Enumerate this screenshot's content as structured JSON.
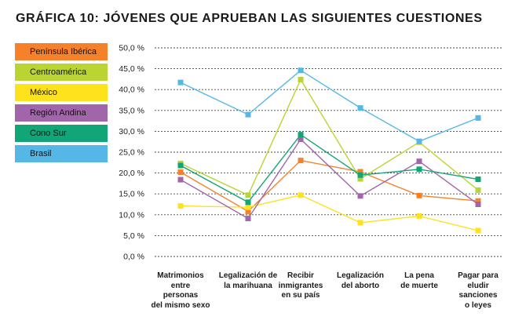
{
  "chart_data": {
    "type": "line",
    "title": "GRÁFICA 10: JÓVENES QUE APRUEBAN LAS SIGUIENTES CUESTIONES",
    "ylim": [
      0,
      50
    ],
    "y_ticks": [
      "0,0 %",
      "5,0 %",
      "10,0 %",
      "15,0 %",
      "20,0 %",
      "25,0 %",
      "30,0 %",
      "35,0 %",
      "40,0 %",
      "45,0 %",
      "50,0 %"
    ],
    "categories": [
      [
        "Matrimonios",
        "entre",
        "personas",
        "del mismo sexo"
      ],
      [
        "Legalización de",
        "la marihuana"
      ],
      [
        "Recibir",
        "inmigrantes",
        "en su país"
      ],
      [
        "Legalización",
        "del aborto"
      ],
      [
        "La pena",
        "de muerte"
      ],
      [
        "Pagar para",
        "eludir",
        "sanciones",
        "o leyes"
      ]
    ],
    "series": [
      {
        "name": "Península Ibérica",
        "color": "#f5822b",
        "values": [
          20.2,
          10.8,
          23.0,
          20.3,
          14.6,
          13.3
        ]
      },
      {
        "name": "Centroamérica",
        "color": "#bad532",
        "values": [
          22.3,
          14.7,
          42.4,
          18.6,
          27.4,
          15.9
        ]
      },
      {
        "name": "México",
        "color": "#fde21c",
        "values": [
          12.1,
          11.8,
          14.7,
          8.1,
          9.7,
          6.2
        ]
      },
      {
        "name": "Región Andina",
        "color": "#a166aa",
        "values": [
          18.4,
          9.1,
          28.1,
          14.5,
          22.8,
          12.5
        ]
      },
      {
        "name": "Cono Sur",
        "color": "#12a577",
        "values": [
          21.8,
          13.0,
          29.2,
          19.5,
          20.9,
          18.5
        ]
      },
      {
        "name": "Brasil",
        "color": "#55b7e6",
        "values": [
          41.7,
          34.0,
          44.6,
          35.6,
          27.6,
          33.2
        ]
      }
    ]
  }
}
